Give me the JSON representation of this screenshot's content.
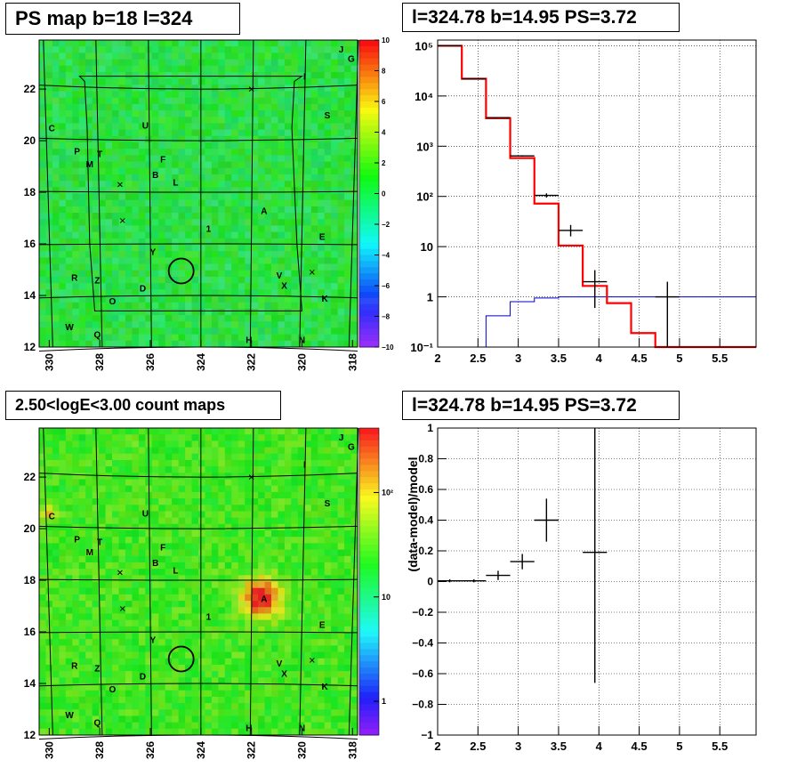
{
  "panels": {
    "map1": {
      "title": "PS map b=18 l=324",
      "x_ticks": [
        "330",
        "328",
        "326",
        "324",
        "322",
        "320",
        "318"
      ],
      "y_ticks": [
        "12",
        "14",
        "16",
        "18",
        "20",
        "22"
      ],
      "colorbar_ticks": [
        "10",
        "8",
        "6",
        "4",
        "2",
        "0",
        "−2",
        "−4",
        "−6",
        "−8",
        "−10"
      ]
    },
    "map2": {
      "title": "2.50<logE<3.00 count maps",
      "x_ticks": [
        "330",
        "328",
        "326",
        "324",
        "322",
        "320",
        "318"
      ],
      "y_ticks": [
        "12",
        "14",
        "16",
        "18",
        "20",
        "22"
      ],
      "colorbar_ticks": [
        "10²",
        "10",
        "1"
      ]
    },
    "spectrum": {
      "title": "l=324.78 b=14.95 PS=3.72",
      "x_ticks": [
        "2",
        "2.5",
        "3",
        "3.5",
        "4",
        "4.5",
        "5",
        "5.5"
      ],
      "y_ticks": [
        "10⁻¹",
        "1",
        "10",
        "10²",
        "10³",
        "10⁴",
        "10⁵"
      ]
    },
    "residual": {
      "title": "l=324.78 b=14.95 PS=3.72",
      "ylabel": "(data-model)/model",
      "x_ticks": [
        "2",
        "2.5",
        "3",
        "3.5",
        "4",
        "4.5",
        "5",
        "5.5"
      ],
      "y_ticks": [
        "−1",
        "−0.8",
        "−0.6",
        "−0.4",
        "−0.2",
        "0",
        "0.2",
        "0.4",
        "0.6",
        "0.8",
        "1"
      ]
    }
  },
  "map_labels": [
    {
      "text": "J",
      "l": 318.45,
      "b": 23.55
    },
    {
      "text": "G",
      "l": 318.05,
      "b": 23.2
    },
    {
      "text": "I",
      "l": 319.9,
      "b": 22.5
    },
    {
      "text": "S",
      "l": 319.0,
      "b": 21.0
    },
    {
      "text": "C",
      "l": 329.9,
      "b": 20.5
    },
    {
      "text": "U",
      "l": 326.2,
      "b": 20.6
    },
    {
      "text": "P",
      "l": 328.9,
      "b": 19.6
    },
    {
      "text": "T",
      "l": 328.0,
      "b": 19.5
    },
    {
      "text": "F",
      "l": 325.5,
      "b": 19.3
    },
    {
      "text": "M",
      "l": 328.4,
      "b": 19.1
    },
    {
      "text": "B",
      "l": 325.8,
      "b": 18.7
    },
    {
      "text": "L",
      "l": 325.0,
      "b": 18.4
    },
    {
      "text": "A",
      "l": 321.5,
      "b": 17.3
    },
    {
      "text": "1",
      "l": 323.7,
      "b": 16.6
    },
    {
      "text": "E",
      "l": 319.2,
      "b": 16.3
    },
    {
      "text": "Y",
      "l": 325.9,
      "b": 15.7
    },
    {
      "text": "V",
      "l": 320.9,
      "b": 14.8
    },
    {
      "text": "R",
      "l": 329.0,
      "b": 14.7
    },
    {
      "text": "Z",
      "l": 328.1,
      "b": 14.6
    },
    {
      "text": "D",
      "l": 326.3,
      "b": 14.3
    },
    {
      "text": "X",
      "l": 320.7,
      "b": 14.4
    },
    {
      "text": "K",
      "l": 319.1,
      "b": 13.9
    },
    {
      "text": "O",
      "l": 327.5,
      "b": 13.8
    },
    {
      "text": "W",
      "l": 329.2,
      "b": 12.8
    },
    {
      "text": "Q",
      "l": 328.1,
      "b": 12.5
    },
    {
      "text": "H",
      "l": 322.1,
      "b": 12.3
    },
    {
      "text": "N",
      "l": 320.0,
      "b": 12.3
    }
  ],
  "map_crosses": [
    {
      "l": 327.2,
      "b": 18.3
    },
    {
      "l": 327.1,
      "b": 16.9
    },
    {
      "l": 322.0,
      "b": 22.0
    },
    {
      "l": 319.6,
      "b": 14.9
    }
  ],
  "target_circle": {
    "l": 324.78,
    "b": 14.95
  },
  "count_map_hotspots": [
    {
      "l": 321.6,
      "b": 17.3,
      "note": "A"
    },
    {
      "l": 330.0,
      "b": 20.6,
      "note": "C"
    }
  ],
  "colors": {
    "model_red": "#ff0000",
    "background_blue": "#0000cc",
    "data_black": "#000000",
    "map_green": "#2ed64a"
  },
  "chart_data": [
    {
      "type": "heatmap",
      "title": "PS map b=18 l=324",
      "xlim": [
        330.4,
        317.8
      ],
      "ylim": [
        12.0,
        23.9
      ],
      "zlim": [
        -10,
        10
      ],
      "x_reversed": true
    },
    {
      "type": "heatmap",
      "title": "2.50<logE<3.00 count maps",
      "xlim": [
        330.4,
        317.8
      ],
      "ylim": [
        12.0,
        23.9
      ],
      "zscale": "log",
      "x_reversed": true
    },
    {
      "type": "line",
      "title": "l=324.78 b=14.95 PS=3.72",
      "yscale": "log",
      "xlim": [
        2.0,
        5.95
      ],
      "ylim": [
        0.1,
        130000
      ],
      "grid": true,
      "series": [
        {
          "step_edges": [
            2.0,
            2.3,
            2.6,
            2.9,
            3.2,
            3.5,
            3.8,
            4.1,
            4.4,
            4.7,
            5.0,
            5.95
          ],
          "values": [
            100000,
            22000,
            3600,
            580,
            72,
            10.5,
            1.65,
            0.75,
            0.19,
            0.09,
            0.1
          ]
        },
        {
          "step_edges": [
            2.0,
            2.3,
            2.6,
            2.9,
            3.2,
            3.5,
            3.8,
            4.1,
            4.4,
            4.7,
            5.0,
            5.95
          ],
          "values": [
            0.09,
            0.1,
            0.42,
            0.8,
            0.95,
            1.0,
            1.0,
            1.0,
            1.0,
            1.0,
            1.0
          ]
        },
        {
          "x": [
            2.15,
            2.45,
            2.75,
            3.05,
            3.35,
            3.65,
            3.95,
            4.25,
            4.55,
            4.85
          ],
          "y": [
            100000,
            22000,
            3700,
            640,
            105,
            21,
            2.0,
            0,
            0,
            1.0
          ],
          "xerr": 0.15,
          "y_low": [
            100000,
            22000,
            3600,
            620,
            95,
            16,
            0.6,
            0,
            0,
            0.1
          ],
          "y_high": [
            100000,
            22000,
            3800,
            660,
            115,
            27,
            3.4,
            0,
            0,
            2.0
          ]
        }
      ]
    },
    {
      "type": "scatter",
      "title": "l=324.78 b=14.95 PS=3.72",
      "ylabel": "(data-model)/model",
      "xlim": [
        2.0,
        5.95
      ],
      "ylim": [
        -1,
        1
      ],
      "grid": true,
      "series": [
        {
          "x": [
            2.15,
            2.45,
            2.75,
            3.05,
            3.35,
            3.95
          ],
          "y": [
            0.005,
            0.005,
            0.04,
            0.13,
            0.4,
            0.19
          ],
          "xerr": 0.15,
          "yerr": [
            0.01,
            0.01,
            0.03,
            0.05,
            0.14,
            0.85
          ]
        }
      ]
    }
  ]
}
